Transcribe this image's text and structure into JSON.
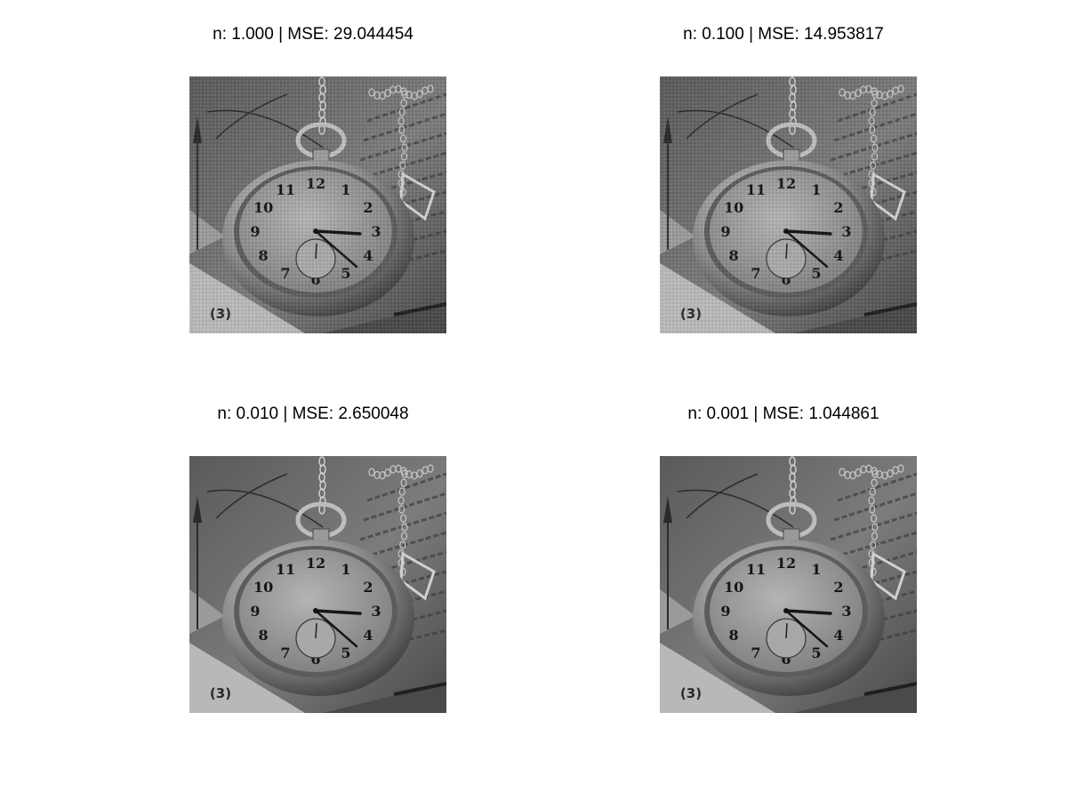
{
  "figure": {
    "panels": [
      {
        "title": "n: 1.000 | MSE: 29.044454",
        "n": "1.000",
        "mse": "29.044454",
        "image": "pocket-watch-grayscale",
        "noisy": true
      },
      {
        "title": "n: 0.100 | MSE: 14.953817",
        "n": "0.100",
        "mse": "14.953817",
        "image": "pocket-watch-grayscale",
        "noisy": true
      },
      {
        "title": "n: 0.010 | MSE: 2.650048",
        "n": "0.010",
        "mse": "2.650048",
        "image": "pocket-watch-grayscale",
        "noisy": false
      },
      {
        "title": "n: 0.001 | MSE: 1.044861",
        "n": "0.001",
        "mse": "1.044861",
        "image": "pocket-watch-grayscale",
        "noisy": false
      }
    ],
    "watch_numerals": [
      "12",
      "1",
      "2",
      "3",
      "4",
      "5",
      "6",
      "7",
      "8",
      "9",
      "10",
      "11"
    ],
    "corner_mark": "(3)"
  }
}
